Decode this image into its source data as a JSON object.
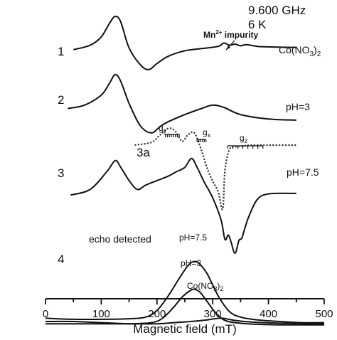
{
  "header": {
    "frequency": "9.600 GHz",
    "temperature": "6 K"
  },
  "chart_data": {
    "type": "line",
    "xlabel": "Magnetic field (mT)",
    "ylabel": "",
    "xlim": [
      0,
      500
    ],
    "x_ticks": [
      "0",
      "100",
      "200",
      "300",
      "400",
      "500"
    ],
    "grid": false,
    "legend": "none",
    "series": [
      {
        "name": "Co(NO3)2",
        "x": [
          50,
          80,
          100,
          115,
          125,
          135,
          150,
          170,
          185,
          200,
          220,
          250,
          280,
          310,
          320,
          330,
          340,
          350,
          360,
          380,
          400,
          450
        ],
        "y": [
          3.72,
          3.8,
          3.95,
          4.2,
          4.32,
          4.22,
          3.75,
          3.45,
          3.36,
          3.47,
          3.6,
          3.7,
          3.74,
          3.78,
          3.84,
          3.8,
          3.82,
          3.79,
          3.81,
          3.78,
          3.77,
          3.76
        ]
      },
      {
        "name": "pH=3",
        "x": [
          40,
          70,
          100,
          115,
          125,
          135,
          150,
          170,
          190,
          205,
          220,
          250,
          280,
          300,
          320,
          350,
          400,
          450
        ],
        "y": [
          2.66,
          2.72,
          2.9,
          3.12,
          3.27,
          3.15,
          2.75,
          2.35,
          2.22,
          2.33,
          2.42,
          2.55,
          2.66,
          2.72,
          2.68,
          2.55,
          2.47,
          2.45
        ]
      },
      {
        "name": "pH=7.5",
        "x": [
          45,
          80,
          110,
          125,
          135,
          150,
          165,
          180,
          200,
          220,
          235,
          250,
          262,
          272,
          285,
          300,
          315,
          322,
          328,
          333,
          340,
          347,
          352,
          357,
          365,
          380,
          400,
          450
        ],
        "y": [
          1.1,
          1.2,
          1.52,
          1.72,
          1.6,
          1.36,
          1.2,
          1.28,
          1.36,
          1.44,
          1.52,
          1.6,
          1.76,
          1.6,
          1.33,
          1.05,
          0.65,
          0.3,
          0.38,
          0.25,
          0.05,
          0.28,
          0.32,
          0.48,
          0.72,
          1.02,
          1.12,
          1.13
        ]
      },
      {
        "name": "3a",
        "x": [
          160,
          190,
          205,
          220,
          232,
          245,
          255,
          267,
          280,
          290,
          300,
          310,
          318,
          322,
          330,
          340,
          350,
          360,
          370,
          380,
          390,
          400,
          450
        ],
        "y": [
          2.0,
          2.05,
          2.18,
          2.3,
          2.26,
          2.07,
          2.18,
          2.22,
          1.9,
          1.58,
          1.35,
          1.15,
          0.85,
          1.55,
          1.92,
          1.97,
          1.98,
          1.99,
          2.0,
          2.0,
          2.0,
          2.0,
          2.0
        ]
      },
      {
        "name": "echo detected pH=7.5",
        "x": [
          0,
          50,
          100,
          150,
          180,
          200,
          220,
          240,
          255,
          265,
          275,
          290,
          310,
          330,
          350,
          380,
          420,
          460,
          500
        ],
        "y": [
          -1.12,
          -1.14,
          -1.14,
          -1.13,
          -1.1,
          -0.98,
          -0.72,
          -0.4,
          -0.18,
          -0.1,
          -0.13,
          -0.32,
          -0.72,
          -1.0,
          -1.1,
          -1.15,
          -1.18,
          -1.2,
          -1.2
        ]
      },
      {
        "name": "echo detected pH=3",
        "x": [
          0,
          50,
          100,
          150,
          190,
          210,
          230,
          245,
          260,
          268,
          278,
          290,
          305,
          320,
          340,
          380,
          430,
          500
        ],
        "y": [
          -1.22,
          -1.22,
          -1.22,
          -1.22,
          -1.2,
          -1.12,
          -0.92,
          -0.74,
          -0.62,
          -0.6,
          -0.66,
          -0.82,
          -1.02,
          -1.15,
          -1.2,
          -1.23,
          -1.24,
          -1.24
        ]
      },
      {
        "name": "echo detected Co(NO3)2",
        "x": [
          0,
          50,
          100,
          150,
          200,
          230,
          260,
          290,
          315,
          340,
          370,
          420,
          500
        ],
        "y": [
          -1.18,
          -1.18,
          -1.2,
          -1.22,
          -1.22,
          -1.2,
          -1.18,
          -1.15,
          -1.12,
          -1.16,
          -1.19,
          -1.21,
          -1.22
        ]
      }
    ],
    "annotations": {
      "trace_numbers": [
        "1",
        "2",
        "3",
        "3a",
        "4"
      ],
      "trace1_label_main": "Co(NO",
      "trace1_label_sub": "3",
      "trace1_label_tail": ")",
      "trace1_label_sub2": "2",
      "mn_label_main": "Mn",
      "mn_label_sup": "2+",
      "mn_label_tail": " impurity",
      "trace2_label": "pH=3",
      "trace3_label": "pH=7.5",
      "gy_main": "g",
      "gy_sub": "y",
      "gx_main": "g",
      "gx_sub": "x",
      "gz_main": "g",
      "gz_sub": "z",
      "echo_label": "echo detected",
      "echo_ph75": "pH=7.5",
      "echo_ph3": "pH=3",
      "echo_co_main": "Co(NO",
      "echo_co_sub": "3",
      "echo_co_tail": ")",
      "echo_co_sub2": "2"
    }
  }
}
